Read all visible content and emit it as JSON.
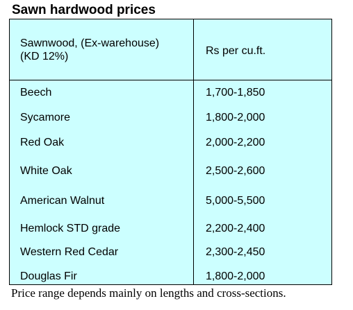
{
  "title": "Sawn hardwood prices",
  "table": {
    "header_left_line1": "Sawnwood, (Ex-warehouse)",
    "header_left_line2": "(KD 12%)",
    "header_right": "Rs per cu.ft.",
    "rows": [
      {
        "species": "Beech",
        "price": "1,700-1,850"
      },
      {
        "species": "Sycamore",
        "price": "1,800-2,000"
      },
      {
        "species": "Red Oak",
        "price": "2,000-2,200"
      },
      {
        "species": "White Oak",
        "price": "2,500-2,600"
      },
      {
        "species": "American Walnut",
        "price": "5,000-5,500"
      },
      {
        "species": "Hemlock STD grade",
        "price": "2,200-2,400"
      },
      {
        "species": "Western Red Cedar",
        "price": "2,300-2,450"
      },
      {
        "species": "Douglas Fir",
        "price": "1,800-2,000"
      }
    ]
  },
  "footnote": "Price range depends mainly on lengths and cross-sections."
}
